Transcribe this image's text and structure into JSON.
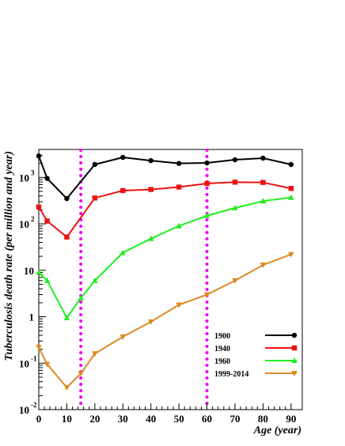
{
  "chart_data": {
    "type": "line",
    "title": "",
    "xlabel": "Age (year)",
    "ylabel": "Tuberculosis death rate (per million and year)",
    "xlim": [
      0,
      94
    ],
    "ylim": [
      0.01,
      4000
    ],
    "yscale": "log",
    "x_ticks": [
      0,
      10,
      20,
      30,
      40,
      50,
      60,
      70,
      80,
      90
    ],
    "y_ticks": [
      {
        "value": 0.01,
        "base": "10",
        "exp": "-2"
      },
      {
        "value": 0.1,
        "base": "10",
        "exp": "-1"
      },
      {
        "value": 1,
        "base": "1",
        "exp": ""
      },
      {
        "value": 10,
        "base": "10",
        "exp": ""
      },
      {
        "value": 100,
        "base": "10",
        "exp": "2"
      },
      {
        "value": 1000,
        "base": "10",
        "exp": "3"
      }
    ],
    "vertical_lines": [
      15,
      60
    ],
    "vertical_line_color": "#ee00ee",
    "legend_position": "bottom-right",
    "series": [
      {
        "name": "1900",
        "color": "#000000",
        "marker": "circle",
        "x": [
          0,
          3,
          10,
          20,
          30,
          40,
          50,
          60,
          70,
          80,
          90
        ],
        "y": [
          2900,
          950,
          350,
          1900,
          2700,
          2300,
          2000,
          2050,
          2400,
          2600,
          1900
        ]
      },
      {
        "name": "1940",
        "color": "#ee1111",
        "marker": "square",
        "x": [
          0,
          3,
          10,
          20,
          30,
          40,
          50,
          60,
          70,
          80,
          90
        ],
        "y": [
          230,
          115,
          52,
          360,
          520,
          550,
          620,
          740,
          790,
          780,
          580
        ]
      },
      {
        "name": "1960",
        "color": "#22ee22",
        "marker": "triangle-up",
        "x": [
          0,
          3,
          10,
          15,
          20,
          30,
          40,
          50,
          60,
          70,
          80,
          90
        ],
        "y": [
          9,
          6,
          0.95,
          2.5,
          6,
          24,
          48,
          90,
          150,
          220,
          310,
          370
        ]
      },
      {
        "name": "1999-2014",
        "color": "#dd8a22",
        "marker": "triangle-down",
        "x": [
          0,
          3,
          10,
          15,
          20,
          30,
          40,
          50,
          60,
          70,
          80,
          90
        ],
        "y": [
          0.22,
          0.095,
          0.03,
          0.06,
          0.16,
          0.37,
          0.78,
          1.8,
          3,
          6,
          13,
          22
        ]
      }
    ]
  }
}
